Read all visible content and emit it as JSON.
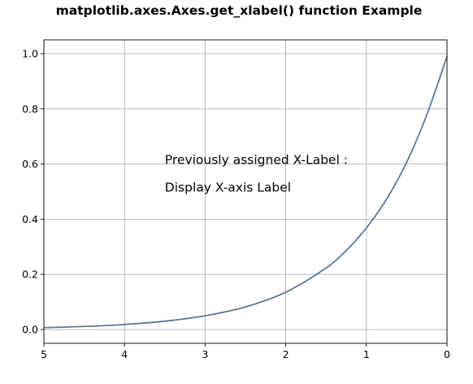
{
  "chart_data": {
    "type": "line",
    "title": "matplotlib.axes.Axes.get_xlabel() function Example",
    "xlabel": "",
    "ylabel": "",
    "xlim": [
      5,
      0
    ],
    "ylim": [
      -0.05,
      1.05
    ],
    "x_inverted": true,
    "grid": true,
    "x_ticks": [
      5,
      4,
      3,
      2,
      1,
      0
    ],
    "x_tick_labels": [
      "5",
      "4",
      "3",
      "2",
      "1",
      "0"
    ],
    "y_ticks": [
      0.0,
      0.2,
      0.4,
      0.6,
      0.8,
      1.0
    ],
    "y_tick_labels": [
      "0.0",
      "0.2",
      "0.4",
      "0.6",
      "0.8",
      "1.0"
    ],
    "series": [
      {
        "color": "#5a7896",
        "x": [
          5.0,
          4.5,
          4.0,
          3.5,
          3.0,
          2.5,
          2.0,
          1.5,
          1.25,
          1.0,
          0.75,
          0.5,
          0.25,
          0.0
        ],
        "y": [
          0.0067,
          0.0111,
          0.0183,
          0.0302,
          0.0498,
          0.0821,
          0.1353,
          0.2231,
          0.2865,
          0.3679,
          0.4724,
          0.6065,
          0.7788,
          0.99
        ]
      }
    ],
    "annotations": [
      {
        "text": "Previously assigned X-Label :",
        "x": 3.5,
        "y": 0.6
      },
      {
        "text": "Display X-axis Label",
        "x": 3.5,
        "y": 0.5
      }
    ]
  }
}
